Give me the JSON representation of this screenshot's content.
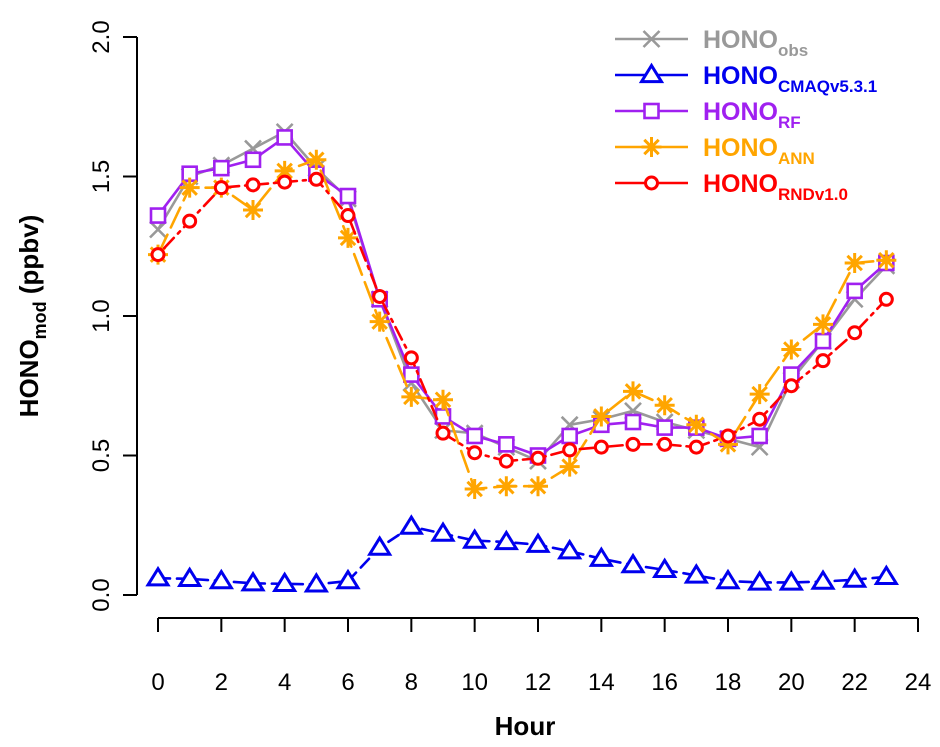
{
  "chart_data": {
    "type": "line",
    "xlabel": "Hour",
    "ylabel": "HONO",
    "ylabel_sub": "mod",
    "ylabel_suffix": " (ppbv)",
    "xlim": [
      0,
      24
    ],
    "ylim": [
      0,
      2.0
    ],
    "xticks": [
      0,
      2,
      4,
      6,
      8,
      10,
      12,
      14,
      16,
      18,
      20,
      22,
      24
    ],
    "yticks": [
      0.0,
      0.5,
      1.0,
      1.5,
      2.0
    ],
    "yticklabels": [
      "0.0",
      "0.5",
      "1.0",
      "1.5",
      "2.0"
    ],
    "grid": false,
    "legend_position": "top-right",
    "x": [
      0,
      1,
      2,
      3,
      4,
      5,
      6,
      7,
      8,
      9,
      10,
      11,
      12,
      13,
      14,
      15,
      16,
      17,
      18,
      19,
      20,
      21,
      22,
      23
    ],
    "series": [
      {
        "key": "obs",
        "name": "HONO",
        "name_sub": "obs",
        "color": "#999999",
        "marker": "x",
        "line": "solid",
        "values": [
          1.31,
          1.5,
          1.54,
          1.6,
          1.66,
          1.53,
          1.42,
          1.06,
          0.76,
          0.59,
          0.58,
          0.53,
          0.48,
          0.61,
          0.63,
          0.66,
          0.62,
          0.59,
          0.56,
          0.53,
          0.77,
          0.91,
          1.06,
          1.18
        ]
      },
      {
        "key": "cmaq",
        "name": "HONO",
        "name_sub": "CMAQv5.3.1",
        "color": "#0000ee",
        "marker": "triangle",
        "line": "dashed",
        "values": [
          0.06,
          0.058,
          0.05,
          0.042,
          0.04,
          0.038,
          0.05,
          0.17,
          0.245,
          0.22,
          0.195,
          0.19,
          0.18,
          0.157,
          0.13,
          0.107,
          0.09,
          0.07,
          0.05,
          0.045,
          0.045,
          0.048,
          0.055,
          0.065
        ]
      },
      {
        "key": "rf",
        "name": "HONO",
        "name_sub": "RF",
        "color": "#a020f0",
        "marker": "square",
        "line": "solid",
        "values": [
          1.36,
          1.51,
          1.53,
          1.56,
          1.64,
          1.51,
          1.43,
          1.06,
          0.79,
          0.64,
          0.57,
          0.54,
          0.5,
          0.57,
          0.61,
          0.62,
          0.6,
          0.6,
          0.56,
          0.57,
          0.79,
          0.91,
          1.09,
          1.19
        ]
      },
      {
        "key": "ann",
        "name": "HONO",
        "name_sub": "ANN",
        "color": "#ffa500",
        "marker": "star",
        "line": "longdash",
        "values": [
          1.22,
          1.46,
          1.46,
          1.38,
          1.52,
          1.56,
          1.28,
          0.98,
          0.71,
          0.7,
          0.38,
          0.39,
          0.39,
          0.46,
          0.64,
          0.73,
          0.68,
          0.61,
          0.54,
          0.72,
          0.88,
          0.97,
          1.19,
          1.2
        ]
      },
      {
        "key": "rnd",
        "name": "HONO",
        "name_sub": "RNDv1.0",
        "color": "#ff0000",
        "marker": "circle",
        "line": "dotdash",
        "values": [
          1.22,
          1.34,
          1.46,
          1.47,
          1.48,
          1.49,
          1.36,
          1.07,
          0.85,
          0.58,
          0.51,
          0.48,
          0.49,
          0.52,
          0.53,
          0.54,
          0.54,
          0.53,
          0.57,
          0.63,
          0.75,
          0.84,
          0.94,
          1.06
        ]
      }
    ]
  }
}
